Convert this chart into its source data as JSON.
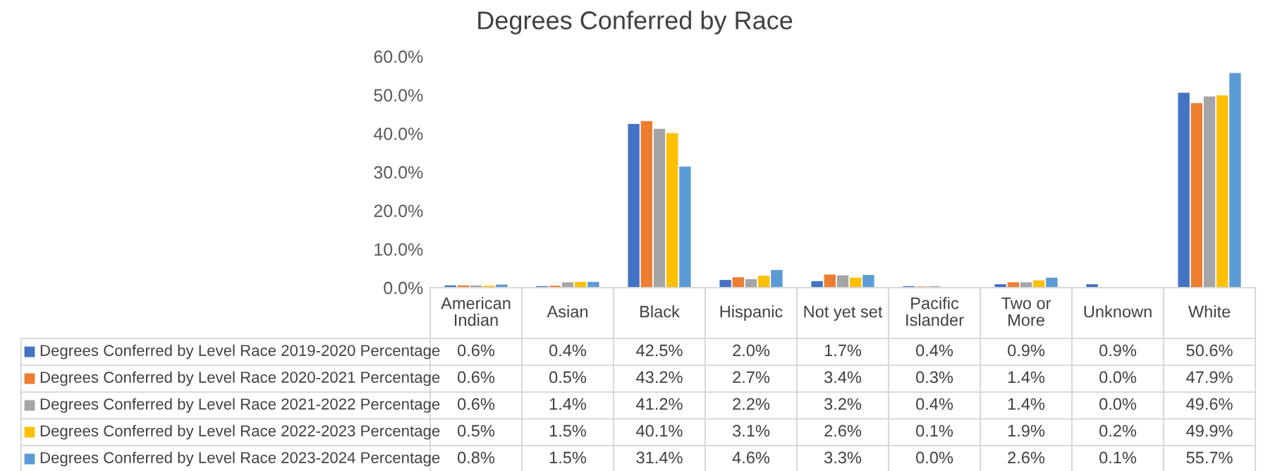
{
  "chart_data": {
    "type": "bar",
    "title": "Degrees Conferred by Race",
    "categories": [
      "American\nIndian",
      "Asian",
      "Black",
      "Hispanic",
      "Not yet set",
      "Pacific\nIslander",
      "Two or\nMore",
      "Unknown",
      "White"
    ],
    "series": [
      {
        "name": "Degrees Conferred by Level Race 2019-2020 Percentage",
        "color": "#4472c4",
        "values": [
          0.6,
          0.4,
          42.5,
          2.0,
          1.7,
          0.4,
          0.9,
          0.9,
          50.6
        ],
        "value_labels": [
          "0.6%",
          "0.4%",
          "42.5%",
          "2.0%",
          "1.7%",
          "0.4%",
          "0.9%",
          "0.9%",
          "50.6%"
        ]
      },
      {
        "name": "Degrees Conferred by Level Race 2020-2021 Percentage",
        "color": "#ed7d31",
        "values": [
          0.6,
          0.5,
          43.2,
          2.7,
          3.4,
          0.3,
          1.4,
          0.0,
          47.9
        ],
        "value_labels": [
          "0.6%",
          "0.5%",
          "43.2%",
          "2.7%",
          "3.4%",
          "0.3%",
          "1.4%",
          "0.0%",
          "47.9%"
        ]
      },
      {
        "name": "Degrees Conferred by Level Race 2021-2022 Percentage",
        "color": "#a5a5a5",
        "values": [
          0.6,
          1.4,
          41.2,
          2.2,
          3.2,
          0.4,
          1.4,
          0.0,
          49.6
        ],
        "value_labels": [
          "0.6%",
          "1.4%",
          "41.2%",
          "2.2%",
          "3.2%",
          "0.4%",
          "1.4%",
          "0.0%",
          "49.6%"
        ]
      },
      {
        "name": "Degrees Conferred by Level Race 2022-2023 Percentage",
        "color": "#ffc000",
        "values": [
          0.5,
          1.5,
          40.1,
          3.1,
          2.6,
          0.1,
          1.9,
          0.2,
          49.9
        ],
        "value_labels": [
          "0.5%",
          "1.5%",
          "40.1%",
          "3.1%",
          "2.6%",
          "0.1%",
          "1.9%",
          "0.2%",
          "49.9%"
        ]
      },
      {
        "name": "Degrees Conferred by Level Race 2023-2024 Percentage",
        "color": "#5b9bd5",
        "values": [
          0.8,
          1.5,
          31.4,
          4.6,
          3.3,
          0.0,
          2.6,
          0.1,
          55.7
        ],
        "value_labels": [
          "0.8%",
          "1.5%",
          "31.4%",
          "4.6%",
          "3.3%",
          "0.0%",
          "2.6%",
          "0.1%",
          "55.7%"
        ]
      }
    ],
    "ylim": [
      0,
      60
    ],
    "yticks": [
      {
        "value": 0,
        "label": "0.0%"
      },
      {
        "value": 10,
        "label": "10.0%"
      },
      {
        "value": 20,
        "label": "20.0%"
      },
      {
        "value": 30,
        "label": "30.0%"
      },
      {
        "value": 40,
        "label": "40.0%"
      },
      {
        "value": 50,
        "label": "50.0%"
      },
      {
        "value": 60,
        "label": "60.0%"
      }
    ],
    "grid": false,
    "legend": "bottom"
  }
}
